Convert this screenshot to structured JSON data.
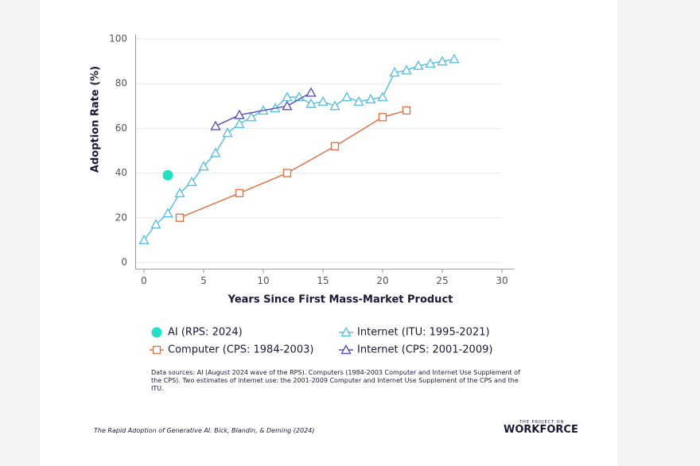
{
  "chart_data": {
    "type": "line",
    "xlabel": "Years Since First Mass-Market Product",
    "ylabel": "Adoption Rate (%)",
    "xlim": [
      -0.7,
      31
    ],
    "xticks": [
      0,
      5,
      10,
      15,
      20,
      25,
      30
    ],
    "ylim": [
      -3,
      102
    ],
    "yticks": [
      0,
      20,
      40,
      60,
      80,
      100
    ],
    "grid": true,
    "series": [
      {
        "name": "AI (RPS: 2024)",
        "color": "#22e0c4",
        "marker": "circle",
        "x": [
          2
        ],
        "values": [
          39
        ]
      },
      {
        "name": "Computer (CPS: 1984-2003)",
        "color": "#e0764a",
        "marker": "square",
        "x": [
          3,
          8,
          12,
          16,
          20,
          22
        ],
        "values": [
          20,
          31,
          40,
          52,
          65,
          68
        ]
      },
      {
        "name": "Internet (ITU: 1995-2021)",
        "color": "#5cc0e2",
        "marker": "triangle",
        "x": [
          0,
          1,
          2,
          3,
          4,
          5,
          6,
          7,
          8,
          9,
          10,
          11,
          12,
          13,
          14,
          15,
          16,
          17,
          18,
          19,
          20,
          21,
          22,
          23,
          24,
          25,
          26
        ],
        "values": [
          10,
          17,
          22,
          31,
          36,
          43,
          49,
          58,
          62,
          65,
          68,
          69,
          74,
          74,
          71,
          72,
          70,
          74,
          72,
          73,
          74,
          85,
          86,
          88,
          89,
          90,
          91
        ]
      },
      {
        "name": "Internet (CPS: 2001-2009)",
        "color": "#5a52c2",
        "marker": "triangle",
        "x": [
          6,
          8,
          12,
          14
        ],
        "values": [
          61,
          66,
          70,
          76
        ]
      }
    ]
  },
  "note": "Data sources: AI (August 2024 wave of the RPS). Computers (1984-2003 Computer and Internet Use Supplement of the CPS). Two estimates of internet use: the 2001-2009 Computer and Internet Use Supplement of the CPS and the ITU.",
  "footer": "The Rapid Adoption of Generative AI. Bick, Blandin, & Deming (2024)",
  "logo": {
    "top": "THE PROJECT ON",
    "main": "WORKFORCE"
  }
}
